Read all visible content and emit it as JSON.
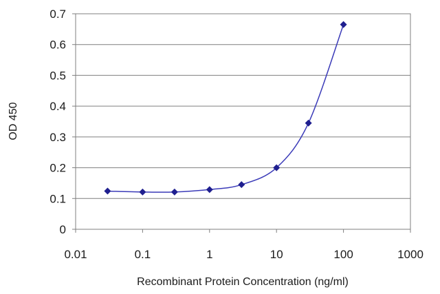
{
  "chart_data": {
    "type": "line",
    "xlabel": "Recombinant Protein Concentration (ng/ml)",
    "ylabel": "OD 450",
    "xscale": "log",
    "xlim": [
      0.01,
      1000
    ],
    "ylim": [
      0,
      0.7
    ],
    "grid": true,
    "legend": "none",
    "x_ticks": [
      "0.01",
      "0.1",
      "1",
      "10",
      "100",
      "1000"
    ],
    "x_tick_values": [
      0.01,
      0.1,
      1,
      10,
      100,
      1000
    ],
    "y_ticks": [
      "0",
      "0.1",
      "0.2",
      "0.3",
      "0.4",
      "0.5",
      "0.6",
      "0.7"
    ],
    "y_tick_values": [
      0,
      0.1,
      0.2,
      0.3,
      0.4,
      0.5,
      0.6,
      0.7
    ],
    "series": [
      {
        "x": [
          0.03,
          0.1,
          0.3,
          1,
          3,
          10,
          30,
          100
        ],
        "y": [
          0.124,
          0.121,
          0.121,
          0.129,
          0.145,
          0.2,
          0.345,
          0.665
        ],
        "color": "#1f1f8f"
      }
    ]
  }
}
